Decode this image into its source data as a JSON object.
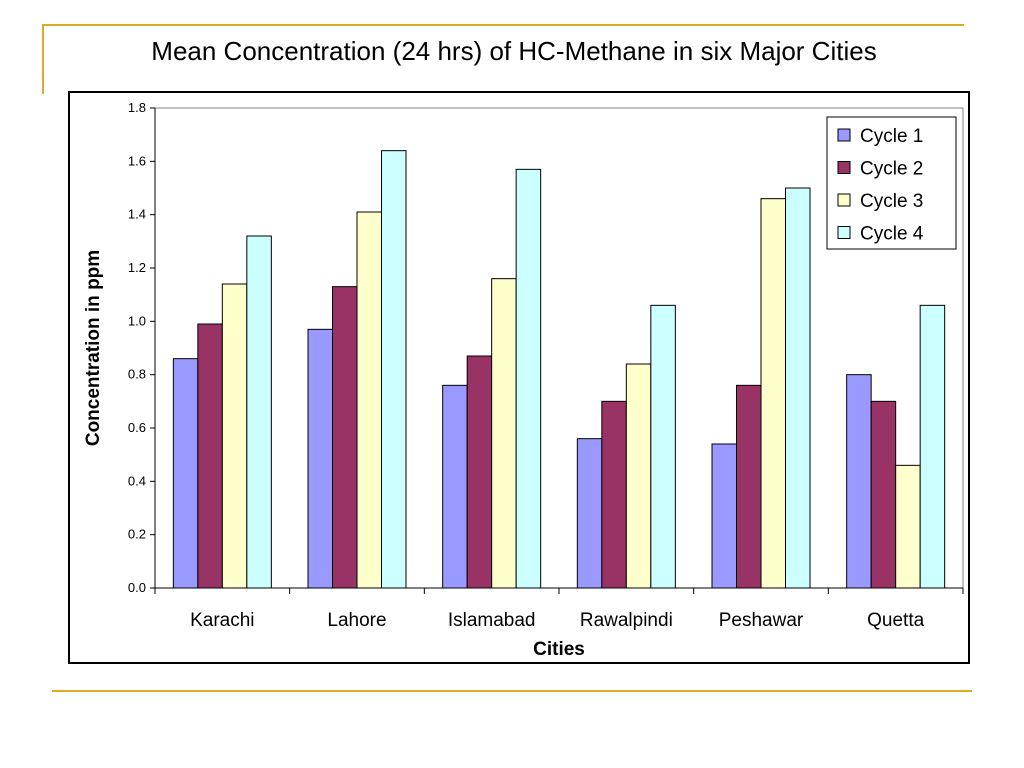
{
  "slide": {
    "title": "Mean Concentration (24 hrs) of HC-Methane in six Major Cities"
  },
  "colors": {
    "accent_line": "#e0a928"
  },
  "chart_data": {
    "type": "bar",
    "xlabel": "Cities",
    "ylabel": "Concentration in ppm",
    "ylim": [
      0,
      1.8
    ],
    "yticks": [
      "0.0",
      "0.2",
      "0.4",
      "0.6",
      "0.8",
      "1.0",
      "1.2",
      "1.4",
      "1.6",
      "1.8"
    ],
    "grid": false,
    "legend_position": "top-right",
    "categories": [
      "Karachi",
      "Lahore",
      "Islamabad",
      "Rawalpindi",
      "Peshawar",
      "Quetta"
    ],
    "series": [
      {
        "name": "Cycle 1",
        "color": "#9999ff",
        "values": [
          0.86,
          0.97,
          0.76,
          0.56,
          0.54,
          0.8
        ]
      },
      {
        "name": "Cycle 2",
        "color": "#993366",
        "values": [
          0.99,
          1.13,
          0.87,
          0.7,
          0.76,
          0.7
        ]
      },
      {
        "name": "Cycle 3",
        "color": "#ffffcc",
        "values": [
          1.14,
          1.41,
          1.16,
          0.84,
          1.46,
          0.46
        ]
      },
      {
        "name": "Cycle 4",
        "color": "#ccffff",
        "values": [
          1.32,
          1.64,
          1.57,
          1.06,
          1.5,
          1.06
        ]
      }
    ]
  }
}
